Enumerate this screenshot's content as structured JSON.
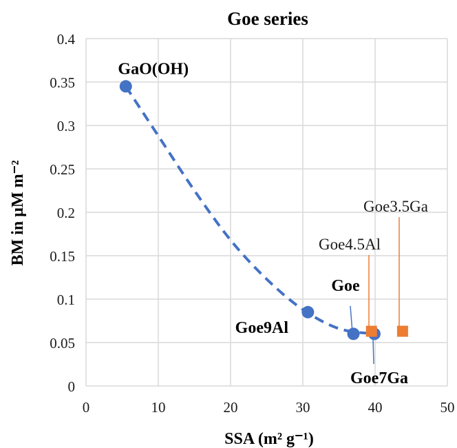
{
  "chart_data": {
    "type": "scatter",
    "title": "Goe series",
    "xlabel": "SSA (m² g⁻¹)",
    "ylabel": "BM in µM m⁻²",
    "xlim": [
      0,
      50
    ],
    "ylim": [
      0,
      0.4
    ],
    "xticks": [
      0,
      10,
      20,
      30,
      40,
      50
    ],
    "yticks": [
      0,
      0.05,
      0.1,
      0.15,
      0.2,
      0.25,
      0.3,
      0.35,
      0.4
    ],
    "ytick_labels": [
      "0",
      "0.05",
      "0.1",
      "0.15",
      "0.2",
      "0.25",
      "0.3",
      "0.35",
      "0.4"
    ],
    "grid": true,
    "legend": false,
    "series": [
      {
        "marker": "circle",
        "color": "#4472c4",
        "trendline": "dashed",
        "points": [
          {
            "x": 5.5,
            "y": 0.345,
            "label": "GaO(OH)"
          },
          {
            "x": 30.7,
            "y": 0.085,
            "label": "Goe9Al"
          },
          {
            "x": 37.0,
            "y": 0.06,
            "label": "Goe"
          },
          {
            "x": 39.9,
            "y": 0.06,
            "label": "Goe7Ga"
          }
        ]
      },
      {
        "marker": "square",
        "color": "#ed7d31",
        "points": [
          {
            "x": 39.5,
            "y": 0.063,
            "label": "Goe4.5Al"
          },
          {
            "x": 43.8,
            "y": 0.063,
            "label": "Goe3.5Ga"
          }
        ]
      }
    ],
    "trendline_points": [
      {
        "x": 5.5,
        "y": 0.345
      },
      {
        "x": 10,
        "y": 0.288
      },
      {
        "x": 15,
        "y": 0.225
      },
      {
        "x": 20,
        "y": 0.168
      },
      {
        "x": 25,
        "y": 0.123
      },
      {
        "x": 30,
        "y": 0.088
      },
      {
        "x": 35,
        "y": 0.066
      },
      {
        "x": 39.9,
        "y": 0.06
      }
    ]
  }
}
